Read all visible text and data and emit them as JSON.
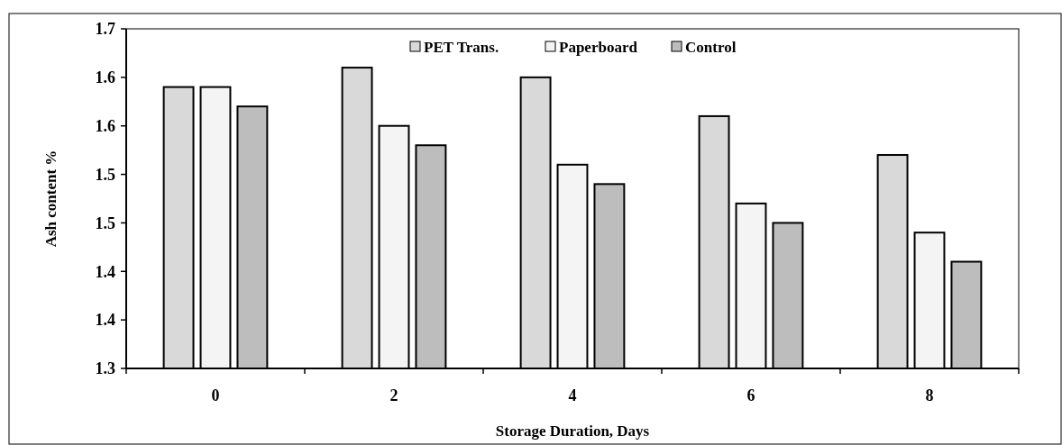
{
  "chart_data": {
    "type": "bar",
    "xlabel": "Storage Duration, Days",
    "ylabel": "Ash content %",
    "categories": [
      "0",
      "2",
      "4",
      "6",
      "8"
    ],
    "series": [
      {
        "name": "PET Trans.",
        "color": "#d9d9d9",
        "values": [
          1.59,
          1.61,
          1.6,
          1.56,
          1.52
        ]
      },
      {
        "name": "Paperboard",
        "color": "#f4f4f4",
        "values": [
          1.59,
          1.55,
          1.51,
          1.47,
          1.44
        ]
      },
      {
        "name": "Control",
        "color": "#bdbdbd",
        "values": [
          1.57,
          1.53,
          1.49,
          1.45,
          1.41
        ]
      }
    ],
    "ylim": [
      1.3,
      1.65
    ],
    "yticks": [
      {
        "value": 1.3,
        "label": "1.3"
      },
      {
        "value": 1.35,
        "label": "1.4"
      },
      {
        "value": 1.4,
        "label": "1.4"
      },
      {
        "value": 1.45,
        "label": "1.5"
      },
      {
        "value": 1.5,
        "label": "1.5"
      },
      {
        "value": 1.55,
        "label": "1.6"
      },
      {
        "value": 1.6,
        "label": "1.6"
      },
      {
        "value": 1.65,
        "label": "1.7"
      }
    ],
    "grid": false,
    "legend": "top"
  }
}
